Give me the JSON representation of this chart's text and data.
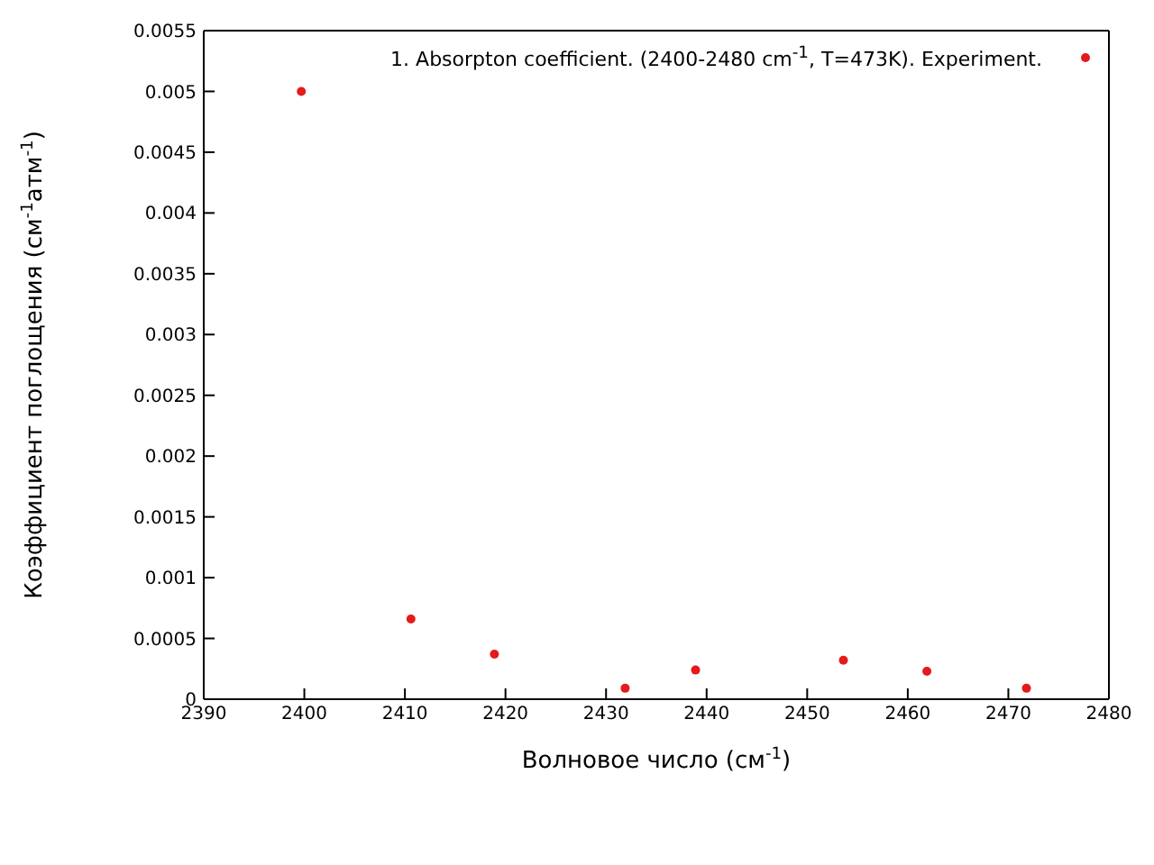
{
  "chart_data": {
    "type": "scatter",
    "xlabel": "Волновое число (см$^{-1}$)",
    "ylabel": "Коэффициент поглощения (см$^{-1}$атм$^{-1}$)",
    "x": [
      2399.7,
      2410.6,
      2418.9,
      2431.9,
      2438.9,
      2453.6,
      2461.9,
      2471.8
    ],
    "series": [
      {
        "name": "1. Absorpton coefficient. (2400-2480 cm$^{-1}$, T=473K). Experiment.",
        "color": "#e41a1c",
        "values": [
          0.005,
          0.00066,
          0.00037,
          9e-05,
          0.00024,
          0.00032,
          0.00023,
          9e-05
        ]
      }
    ],
    "xlim": [
      2390,
      2480
    ],
    "xticks": [
      2390,
      2400,
      2410,
      2420,
      2430,
      2440,
      2450,
      2460,
      2470,
      2480
    ],
    "ylim": [
      0,
      0.0055
    ],
    "yticks": [
      0,
      0.0005,
      0.001,
      0.0015,
      0.002,
      0.0025,
      0.003,
      0.0035,
      0.004,
      0.0045,
      0.005,
      0.0055
    ],
    "grid": false,
    "legend": "top right",
    "marker": "circle"
  }
}
